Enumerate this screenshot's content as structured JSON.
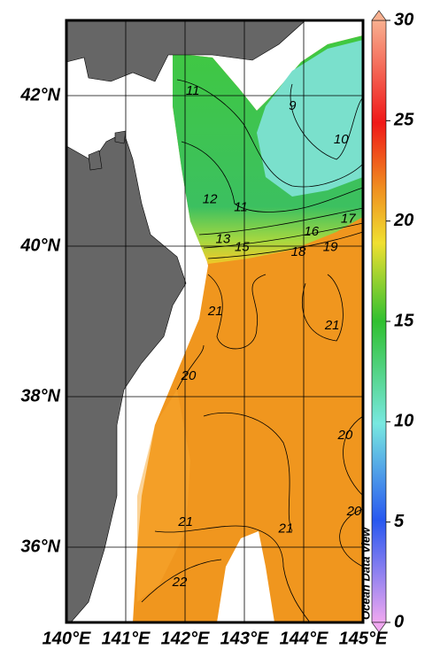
{
  "chart_data": {
    "type": "map",
    "xlim": [
      140,
      145
    ],
    "ylim": [
      35,
      43
    ],
    "xticks": [
      {
        "value": 140,
        "label": "140°E"
      },
      {
        "value": 141,
        "label": "141°E"
      },
      {
        "value": 142,
        "label": "142°E"
      },
      {
        "value": 143,
        "label": "143°E"
      },
      {
        "value": 144,
        "label": "144°E"
      },
      {
        "value": 145,
        "label": "145°E"
      }
    ],
    "yticks": [
      {
        "value": 36,
        "label": "36°N"
      },
      {
        "value": 38,
        "label": "38°N"
      },
      {
        "value": 40,
        "label": "40°N"
      },
      {
        "value": 42,
        "label": "42°N"
      }
    ],
    "grid": true,
    "colorbar": {
      "zlim": [
        0,
        30
      ],
      "ticks": [
        0,
        5,
        10,
        15,
        20,
        25,
        30
      ]
    },
    "contour_labels": {
      "lon": [
        142.13,
        143.81,
        144.63,
        142.42,
        142.94,
        142.64,
        142.96,
        144.13,
        144.75,
        143.91,
        144.45,
        142.51,
        144.48,
        142.06,
        144.7,
        144.85,
        142.01,
        143.7,
        141.91
      ],
      "lat": [
        42.06,
        41.86,
        41.41,
        40.62,
        40.51,
        40.09,
        39.98,
        40.19,
        40.36,
        39.92,
        39.98,
        39.13,
        38.94,
        38.27,
        37.48,
        36.47,
        36.33,
        36.24,
        35.53
      ],
      "values": [
        11,
        9,
        10,
        12,
        11,
        13,
        15,
        16,
        17,
        18,
        19,
        21,
        21,
        20,
        20,
        20,
        21,
        21,
        22
      ]
    },
    "watermark": "Ocean Data View"
  }
}
